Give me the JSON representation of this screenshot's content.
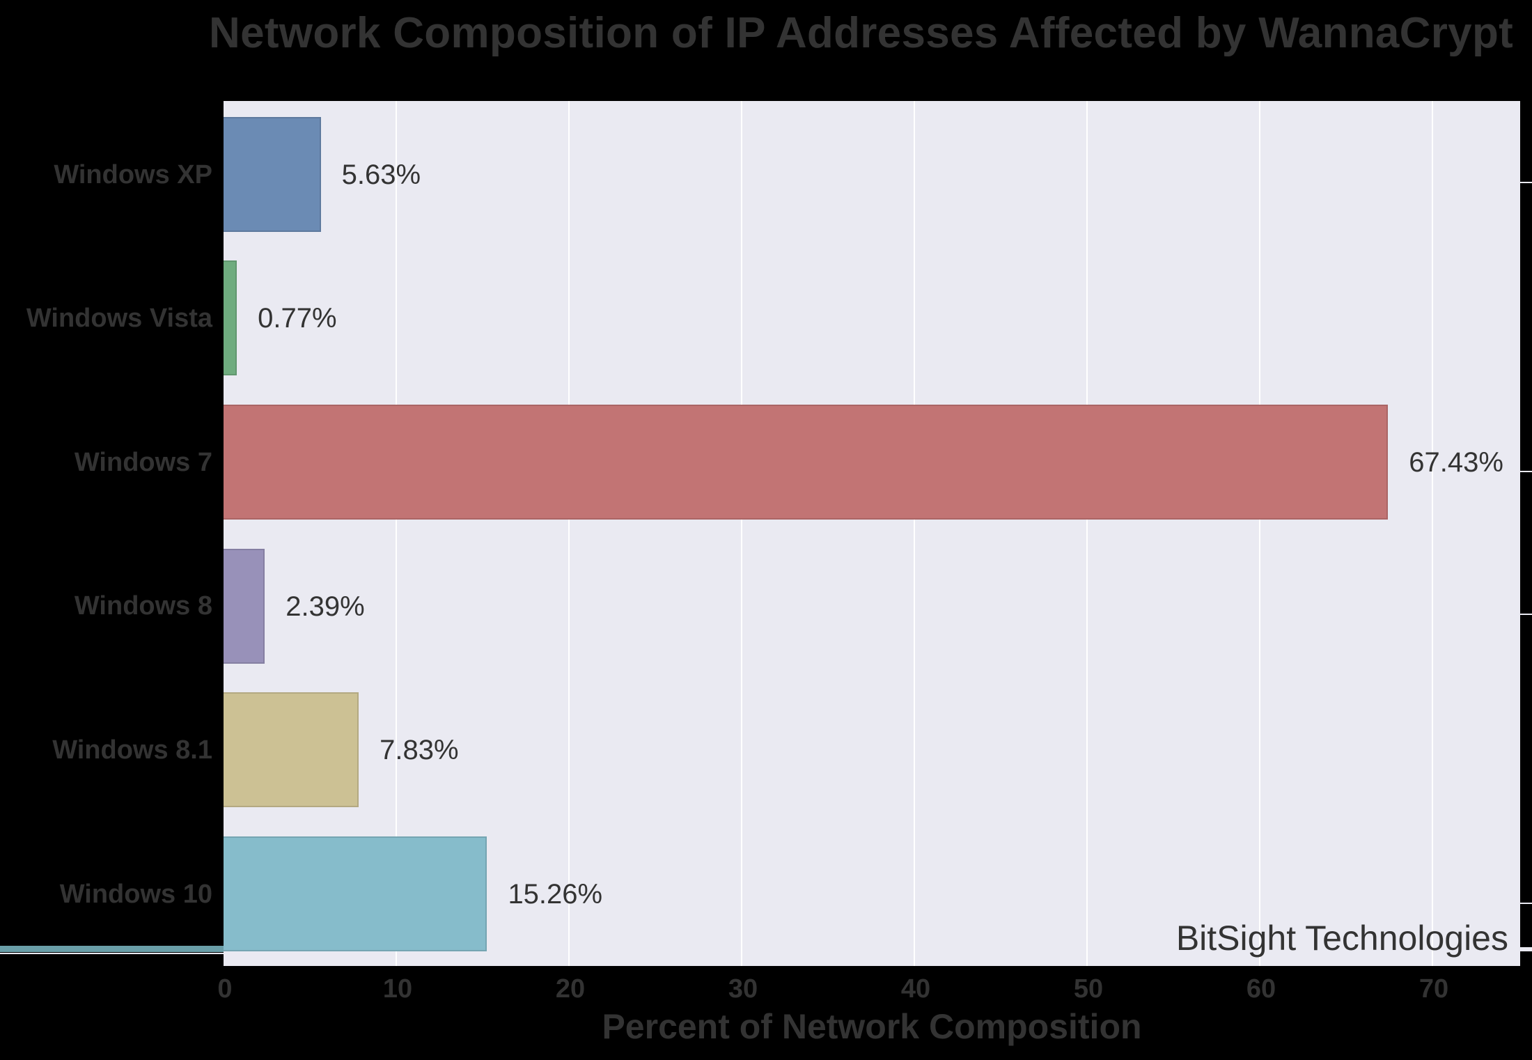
{
  "chart_data": {
    "type": "bar",
    "orientation": "horizontal",
    "title": "Network Composition of IP Addresses Affected by WannaCrypt",
    "xlabel": "Percent of Network Composition",
    "ylabel": "",
    "categories": [
      "Windows XP",
      "Windows Vista",
      "Windows 7",
      "Windows 8",
      "Windows 8.1",
      "Windows 10"
    ],
    "values": [
      5.63,
      0.77,
      67.43,
      2.39,
      7.83,
      15.26
    ],
    "value_labels": [
      "5.63%",
      "0.77%",
      "67.43%",
      "2.39%",
      "7.83%",
      "15.26%"
    ],
    "colors": [
      "#6b8bb4",
      "#6fac7f",
      "#c27474",
      "#9891b9",
      "#ccc194",
      "#86bccb"
    ],
    "xlim": [
      0,
      75
    ],
    "xticks": [
      0,
      10,
      20,
      30,
      40,
      50,
      60,
      70
    ],
    "xtick_labels": [
      "0",
      "10",
      "20",
      "30",
      "40",
      "50",
      "60",
      "70"
    ],
    "grid": true,
    "legend": null,
    "annotation": "BitSight Technologies"
  },
  "chart": {
    "title": "Network Composition of IP Addresses Affected by WannaCrypt",
    "xlabel": "Percent of Network Composition",
    "watermark": "BitSight Technologies",
    "plot_bg": "#eaeaf2",
    "bars": [
      {
        "label": "Windows XP",
        "value": 5.63,
        "text": "5.63%",
        "color": "#6b8bb4"
      },
      {
        "label": "Windows Vista",
        "value": 0.77,
        "text": "0.77%",
        "color": "#6fac7f"
      },
      {
        "label": "Windows 7",
        "value": 67.43,
        "text": "67.43%",
        "color": "#c27474"
      },
      {
        "label": "Windows 8",
        "value": 2.39,
        "text": "2.39%",
        "color": "#9891b9"
      },
      {
        "label": "Windows 8.1",
        "value": 7.83,
        "text": "7.83%",
        "color": "#ccc194"
      },
      {
        "label": "Windows 10",
        "value": 15.26,
        "text": "15.26%",
        "color": "#86bccb"
      }
    ],
    "xticks": [
      "0",
      "10",
      "20",
      "30",
      "40",
      "50",
      "60",
      "70"
    ]
  }
}
